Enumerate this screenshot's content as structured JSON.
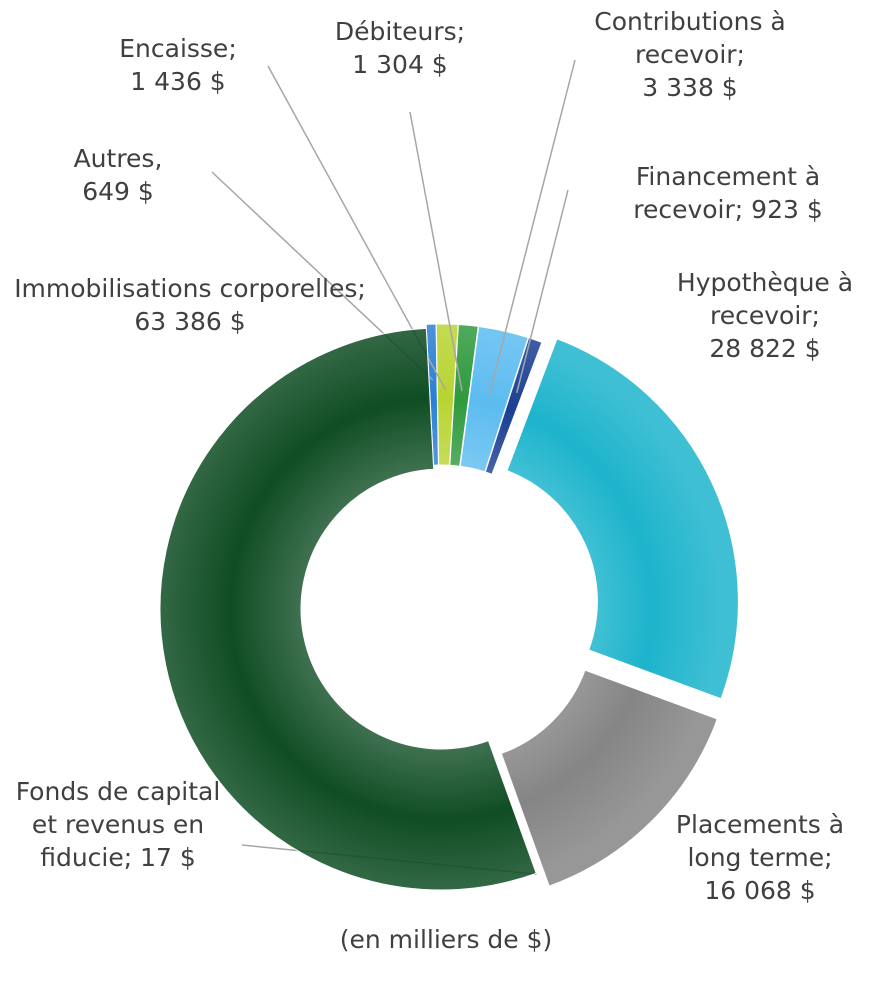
{
  "chart_data": {
    "type": "donut",
    "categories": [
      "Autres,",
      "Encaisse;",
      "Débiteurs;",
      "Contributions à recevoir;",
      "Financement à recevoir;",
      "Hypothèque à recevoir;",
      "Placements à long terme;",
      "Fonds de capital et revenus en fiducie;",
      "Immobilisations corporelles;"
    ],
    "values": [
      649,
      1436,
      1304,
      3338,
      923,
      28822,
      16068,
      17,
      63386
    ],
    "value_labels": [
      "649 $",
      "1 436 $",
      "1 304 $",
      "3 338 $",
      "923 $",
      "28 822 $",
      "16 068 $",
      "17 $",
      "63 386 $"
    ],
    "colors": [
      "#2a7fd4",
      "#b8d432",
      "#2f9a3e",
      "#5cbcf0",
      "#1b3f94",
      "#1db4cc",
      "#858585",
      "#0c4a26",
      "#0f4d24"
    ],
    "caption": "(en milliers de $)"
  }
}
